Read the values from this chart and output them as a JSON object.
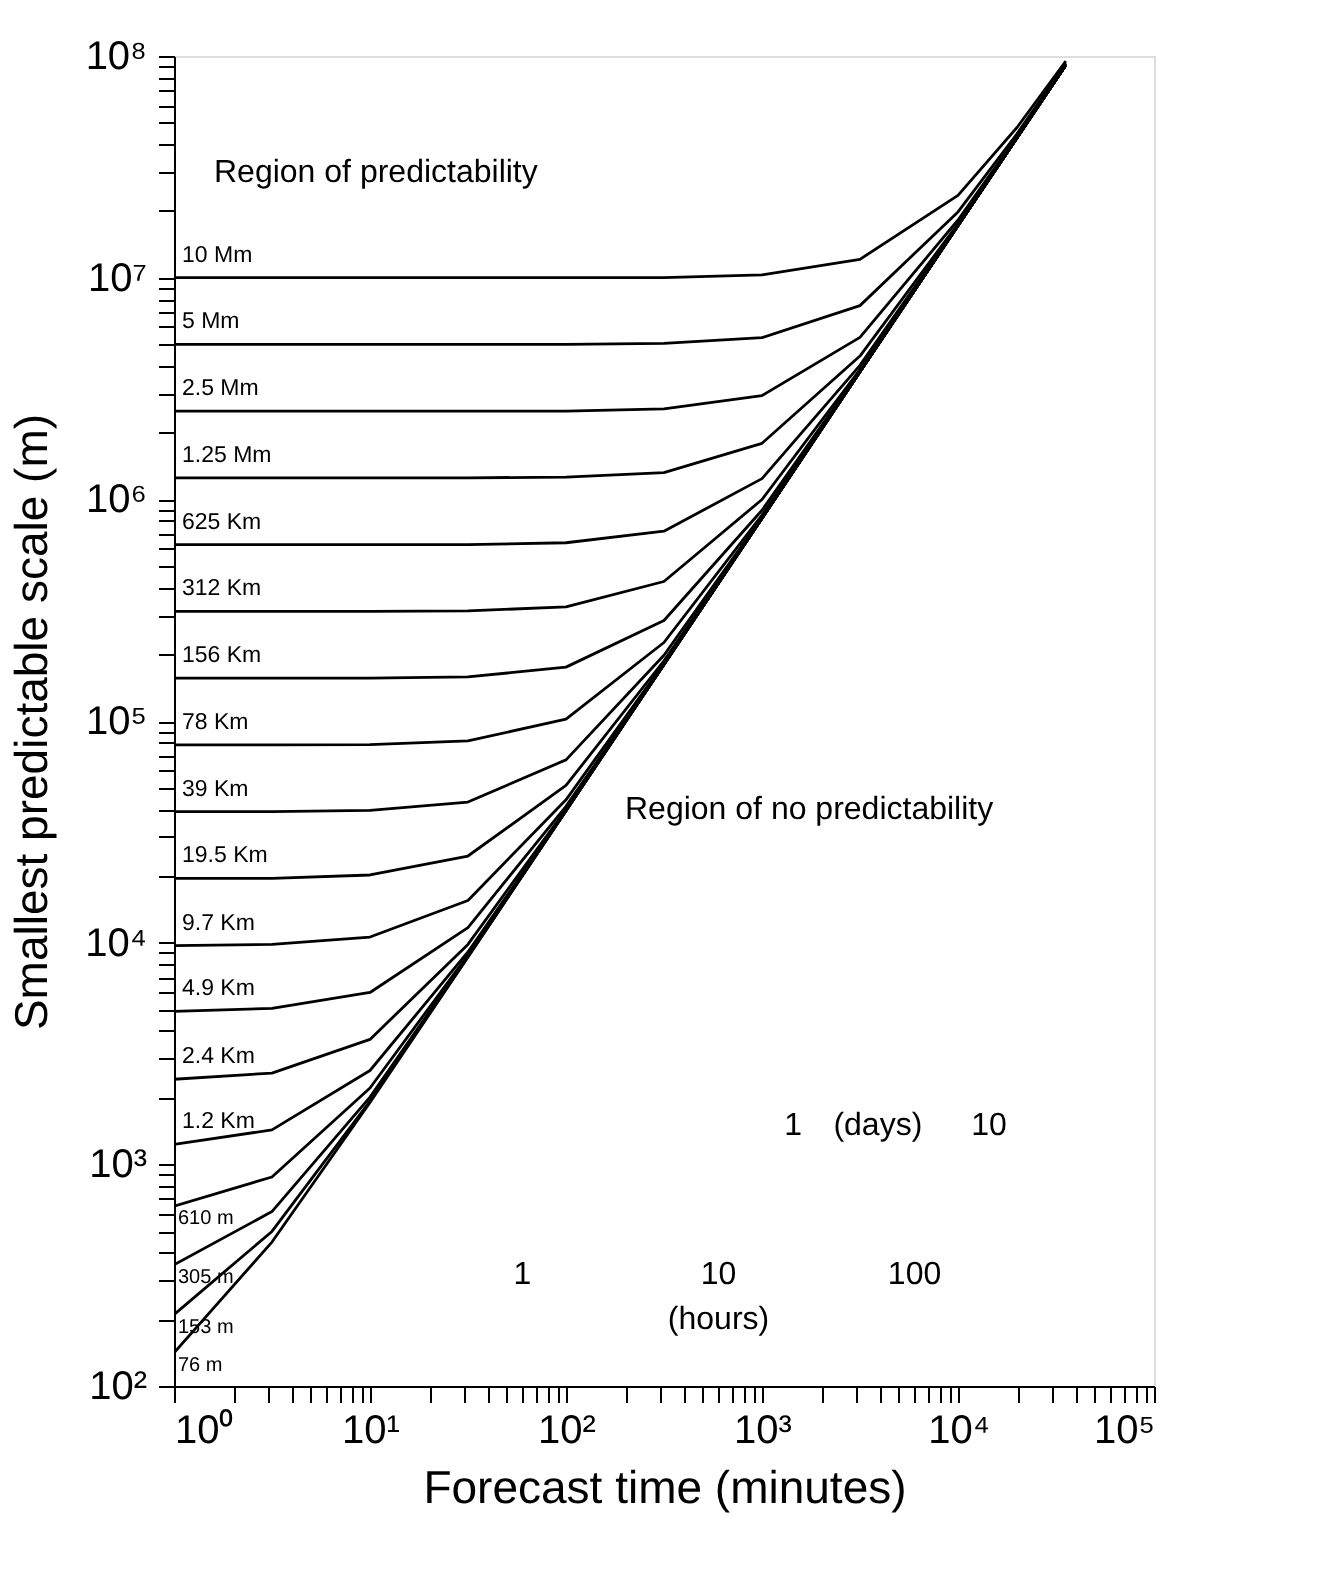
{
  "chart_data": {
    "type": "line",
    "xlabel": "Forecast time (minutes)",
    "ylabel": "Smallest predictable scale (m)",
    "x": [
      1,
      3.16,
      10,
      31.6,
      100,
      316,
      1000,
      3160,
      10000,
      20000,
      35500
    ],
    "series": [
      {
        "name": "10 Mm",
        "color": "#000000",
        "values": [
          10000000.0,
          10000000.0,
          10000000.0,
          10000000.0,
          10000000.0,
          10000000.0,
          10300000.0,
          12100000.0,
          23500000.0,
          47600000.0,
          94800000.0
        ]
      },
      {
        "name": "5 Mm",
        "color": "#000000",
        "values": [
          5000000.0,
          5000000.0,
          5000000.0,
          5000000.0,
          5000000.0,
          5050000.0,
          5360000.0,
          7480000.0,
          19800000.0,
          44600000.0,
          92700000.0
        ]
      },
      {
        "name": "2.5 Mm",
        "color": "#000000",
        "values": [
          2500000.0,
          2500000.0,
          2500000.0,
          2500000.0,
          2500000.0,
          2560000.0,
          2940000.0,
          5380000.0,
          18200000.0,
          43400000.0,
          91800000.0
        ]
      },
      {
        "name": "1.25 Mm",
        "color": "#000000",
        "values": [
          1250000.0,
          1250000.0,
          1250000.0,
          1250000.0,
          1260000.0,
          1320000.0,
          1790000.0,
          4430000.0,
          17500000.0,
          43000000.0,
          91400000.0
        ]
      },
      {
        "name": "625 Km",
        "color": "#000000",
        "values": [
          625000.0,
          625000.0,
          625000.0,
          625000.0,
          637000.0,
          718000.0,
          1240000.0,
          4020000.0,
          17300000.0,
          42900000.0,
          91200000.0
        ]
      },
      {
        "name": "312 Km",
        "color": "#000000",
        "values": [
          312000.0,
          312000.0,
          312000.0,
          314000.0,
          327000.0,
          426000.0,
          998000.0,
          3850000.0,
          17200000.0,
          42800000.0,
          91200000.0
        ]
      },
      {
        "name": "156 Km",
        "color": "#000000",
        "values": [
          156000.0,
          156000.0,
          156000.0,
          158000.0,
          175000.0,
          284000.0,
          893000.0,
          3790000.0,
          17200000.0,
          42800000.0,
          91200000.0
        ]
      },
      {
        "name": "78 Km",
        "color": "#000000",
        "values": [
          78000.0,
          78000.0,
          78300.0,
          81300.0,
          102000.0,
          226000.0,
          849000.0,
          3770000.0,
          17200000.0,
          42800000.0,
          91200000.0
        ]
      },
      {
        "name": "39 Km",
        "color": "#000000",
        "values": [
          39000.0,
          39000.0,
          39500.0,
          43100.0,
          66800.0,
          198000.0,
          830000.0,
          3760000.0,
          17200000.0,
          42800000.0,
          91200000.0
        ]
      },
      {
        "name": "19.5 Km",
        "color": "#000000",
        "values": [
          19500.0,
          19500.0,
          20200.0,
          24600.0,
          51200.0,
          187000.0,
          824000.0,
          3760000.0,
          17200000.0,
          42800000.0,
          91200000.0
        ]
      },
      {
        "name": "9.7 Km",
        "color": "#000000",
        "values": [
          9700.0,
          9820.0,
          10600.0,
          15500.0,
          44100.0,
          182000.0,
          822000.0,
          3760000.0,
          17200000.0,
          42800000.0,
          91200000.0
        ]
      },
      {
        "name": "4.9 Km",
        "color": "#000000",
        "values": [
          4900.0,
          5050.0,
          5960.0,
          11700.0,
          41200.0,
          180000.0,
          822000.0,
          3760000.0,
          17200000.0,
          42800000.0,
          91200000.0
        ]
      },
      {
        "name": "2.4 Km",
        "color": "#000000",
        "values": [
          2420.0,
          2580.0,
          3660.0,
          9820.0,
          40000.0,
          180000.0,
          822000.0,
          3760000.0,
          17200000.0,
          42800000.0,
          91200000.0
        ]
      },
      {
        "name": "1.2 Km",
        "color": "#000000",
        "values": [
          1230.0,
          1430.0,
          2650.0,
          9080.0,
          39500.0,
          180000.0,
          822000.0,
          3760000.0,
          17200000.0,
          42800000.0,
          91200000.0
        ]
      },
      {
        "name": "610 m",
        "color": "#000000",
        "values": [
          647,
          877,
          2210.0,
          8790.0,
          39400.0,
          180000.0,
          822000.0,
          3760000.0,
          17200000.0,
          42800000.0,
          91200000.0
        ]
      },
      {
        "name": "305 m",
        "color": "#000000",
        "values": [
          352,
          612,
          2010.0,
          8670.0,
          39400.0,
          180000.0,
          822000.0,
          3760000.0,
          17200000.0,
          42800000.0,
          91200000.0
        ]
      },
      {
        "name": "153 m",
        "color": "#000000",
        "values": [
          210,
          498,
          1930.0,
          8630.0,
          39400.0,
          180000.0,
          822000.0,
          3760000.0,
          17200000.0,
          42800000.0,
          91200000.0
        ]
      },
      {
        "name": "76 m",
        "color": "#000000",
        "values": [
          141,
          446,
          1900.0,
          8610.0,
          39400.0,
          180000.0,
          822000.0,
          3760000.0,
          17200000.0,
          42800000.0,
          91200000.0
        ]
      }
    ],
    "log": "xy",
    "grid": false,
    "legend": false,
    "marker": "none",
    "line_style": "solid",
    "xlim": [
      1,
      100000
    ],
    "ylim": [
      100,
      100000000
    ],
    "xticks": [
      {
        "value": 1,
        "label": "10⁰"
      },
      {
        "value": 2,
        "label": null
      },
      {
        "value": 3,
        "label": null
      },
      {
        "value": 4,
        "label": null
      },
      {
        "value": 5,
        "label": null
      },
      {
        "value": 6,
        "label": null
      },
      {
        "value": 7,
        "label": null
      },
      {
        "value": 8,
        "label": null
      },
      {
        "value": 9,
        "label": null
      },
      {
        "value": 10,
        "label": "10¹"
      },
      {
        "value": 20,
        "label": null
      },
      {
        "value": 30,
        "label": null
      },
      {
        "value": 40,
        "label": null
      },
      {
        "value": 50,
        "label": null
      },
      {
        "value": 60,
        "label": null
      },
      {
        "value": 70,
        "label": null
      },
      {
        "value": 80,
        "label": null
      },
      {
        "value": 90,
        "label": null
      },
      {
        "value": 100,
        "label": "10²"
      },
      {
        "value": 200,
        "label": null
      },
      {
        "value": 300,
        "label": null
      },
      {
        "value": 400,
        "label": null
      },
      {
        "value": 500,
        "label": null
      },
      {
        "value": 600,
        "label": null
      },
      {
        "value": 700,
        "label": null
      },
      {
        "value": 800,
        "label": null
      },
      {
        "value": 900,
        "label": null
      },
      {
        "value": 1000,
        "label": "10³"
      },
      {
        "value": 2000,
        "label": null
      },
      {
        "value": 3000,
        "label": null
      },
      {
        "value": 4000,
        "label": null
      },
      {
        "value": 5000,
        "label": null
      },
      {
        "value": 6000,
        "label": null
      },
      {
        "value": 7000,
        "label": null
      },
      {
        "value": 8000,
        "label": null
      },
      {
        "value": 9000,
        "label": null
      },
      {
        "value": 10000,
        "label": "10⁴"
      },
      {
        "value": 20000,
        "label": null
      },
      {
        "value": 30000,
        "label": null
      },
      {
        "value": 40000,
        "label": null
      },
      {
        "value": 50000,
        "label": null
      },
      {
        "value": 60000,
        "label": null
      },
      {
        "value": 70000,
        "label": null
      },
      {
        "value": 80000,
        "label": null
      },
      {
        "value": 90000,
        "label": null
      },
      {
        "value": 100000,
        "label": "10⁵"
      }
    ],
    "yticks": [
      {
        "value": 100,
        "label": "10²"
      },
      {
        "value": 200,
        "label": null
      },
      {
        "value": 300,
        "label": null
      },
      {
        "value": 400,
        "label": null
      },
      {
        "value": 500,
        "label": null
      },
      {
        "value": 600,
        "label": null
      },
      {
        "value": 700,
        "label": null
      },
      {
        "value": 800,
        "label": null
      },
      {
        "value": 900,
        "label": null
      },
      {
        "value": 1000,
        "label": "10³"
      },
      {
        "value": 2000,
        "label": null
      },
      {
        "value": 3000,
        "label": null
      },
      {
        "value": 4000,
        "label": null
      },
      {
        "value": 5000,
        "label": null
      },
      {
        "value": 6000,
        "label": null
      },
      {
        "value": 7000,
        "label": null
      },
      {
        "value": 8000,
        "label": null
      },
      {
        "value": 9000,
        "label": null
      },
      {
        "value": 10000,
        "label": "10⁴"
      },
      {
        "value": 20000,
        "label": null
      },
      {
        "value": 30000,
        "label": null
      },
      {
        "value": 40000,
        "label": null
      },
      {
        "value": 50000,
        "label": null
      },
      {
        "value": 60000,
        "label": null
      },
      {
        "value": 70000,
        "label": null
      },
      {
        "value": 80000,
        "label": null
      },
      {
        "value": 90000,
        "label": null
      },
      {
        "value": 100000,
        "label": "10⁵"
      },
      {
        "value": 200000,
        "label": null
      },
      {
        "value": 300000,
        "label": null
      },
      {
        "value": 400000,
        "label": null
      },
      {
        "value": 500000,
        "label": null
      },
      {
        "value": 600000,
        "label": null
      },
      {
        "value": 700000,
        "label": null
      },
      {
        "value": 800000,
        "label": null
      },
      {
        "value": 900000,
        "label": null
      },
      {
        "value": 1000000,
        "label": "10⁶"
      },
      {
        "value": 2000000,
        "label": null
      },
      {
        "value": 3000000,
        "label": null
      },
      {
        "value": 4000000,
        "label": null
      },
      {
        "value": 5000000,
        "label": null
      },
      {
        "value": 6000000,
        "label": null
      },
      {
        "value": 7000000,
        "label": null
      },
      {
        "value": 8000000,
        "label": null
      },
      {
        "value": 9000000,
        "label": null
      },
      {
        "value": 10000000,
        "label": "10⁷"
      },
      {
        "value": 20000000,
        "label": null
      },
      {
        "value": 30000000,
        "label": null
      },
      {
        "value": 40000000,
        "label": null
      },
      {
        "value": 50000000,
        "label": null
      },
      {
        "value": 60000000,
        "label": null
      },
      {
        "value": 70000000,
        "label": null
      },
      {
        "value": 80000000,
        "label": null
      },
      {
        "value": 90000000,
        "label": null
      },
      {
        "value": 100000000,
        "label": "10⁸"
      }
    ],
    "annotations": [
      "Region of predictability",
      "Region of no predictability",
      "1",
      "(days)",
      "10",
      "1",
      "10",
      "100",
      "(hours)"
    ]
  }
}
